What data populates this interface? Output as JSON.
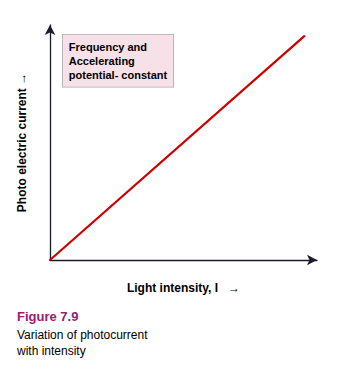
{
  "chart_data": {
    "type": "line",
    "title": "Figure 7.9",
    "subtitle": "Variation of photocurrent\nwith intensity",
    "xlabel": "Light intensity, I   →",
    "ylabel": "Photo electric current →",
    "annotations": [
      "Frequency and\nAccelerating\npotential- constant"
    ],
    "x": [
      0.0,
      1.0
    ],
    "values": [
      0.0,
      1.0
    ],
    "color": "#cc0000",
    "xlim": [
      0,
      1.05
    ],
    "ylim": [
      0,
      1.05
    ],
    "grid": false,
    "tick_labels": false
  }
}
